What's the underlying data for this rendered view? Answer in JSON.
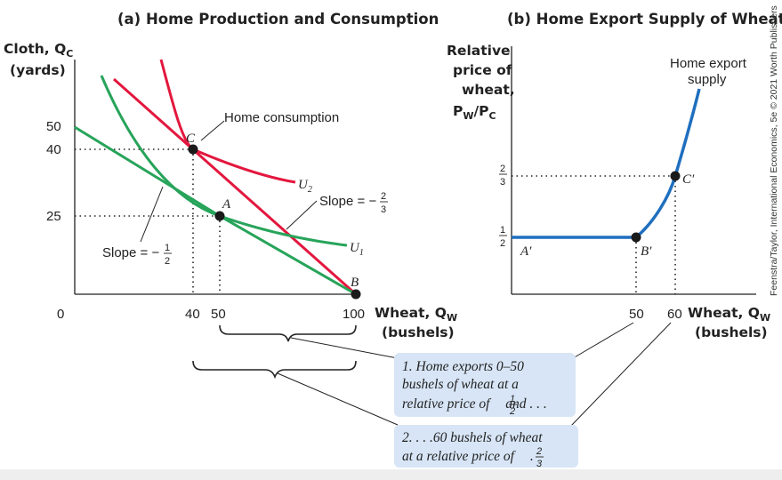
{
  "colors": {
    "green": "#27a45a",
    "red": "#e3173e",
    "blue": "#1f6fbf",
    "box": "#d7e5f6",
    "axis": "#222222"
  },
  "chart_data": [
    {
      "type": "line",
      "title": "(a) Home Production and Consumption",
      "ylabel_lines": [
        "Cloth, Q_C",
        "(yards)"
      ],
      "xlabel_lines": [
        "Wheat, Q_W",
        "(bushels)"
      ],
      "xlim": [
        0,
        100
      ],
      "ylim": [
        0,
        50
      ],
      "xticks": [
        "0",
        "40",
        "50",
        "100"
      ],
      "yticks": [
        "25",
        "40",
        "50"
      ],
      "series": [
        {
          "name": "",
          "role": "ppf",
          "x": [
            0,
            40,
            50,
            100
          ],
          "y": [
            50,
            40,
            25,
            0
          ]
        },
        {
          "name": "U2",
          "x": [
            40,
            45,
            52,
            60,
            70,
            80
          ],
          "y": [
            40,
            36.5,
            32.7,
            29.3,
            26.4,
            24.5
          ]
        },
        {
          "name": "U1",
          "x": [
            50,
            60,
            70,
            80,
            90,
            100
          ],
          "y": [
            25,
            19.8,
            16.6,
            14.6,
            13.3,
            12.6
          ]
        }
      ],
      "points": [
        {
          "label": "C",
          "x": 40,
          "y": 40
        },
        {
          "label": "A",
          "x": 50,
          "y": 25
        },
        {
          "label": "B",
          "x": 100,
          "y": 0
        }
      ],
      "annotations": [
        "Home consumption",
        "Slope = −2/3",
        "Slope = −1/2"
      ]
    },
    {
      "type": "line",
      "title": "(b) Home Export Supply of Wheat",
      "ylabel_lines": [
        "Relative",
        "price of",
        "wheat,",
        "P_W/P_C"
      ],
      "xlabel_lines": [
        "Wheat, Q_W",
        "(bushels)"
      ],
      "xticks": [
        "50",
        "60"
      ],
      "yticks": [
        "1/2",
        "2/3"
      ],
      "series": [
        {
          "name": "Home export supply",
          "x": [
            0,
            50,
            60,
            66
          ],
          "y": [
            0.5,
            0.5,
            0.667,
            1.25
          ]
        }
      ],
      "points": [
        {
          "label": "A′",
          "x": 0,
          "y": 0.5
        },
        {
          "label": "B′",
          "x": 50,
          "y": 0.5
        },
        {
          "label": "C′",
          "x": 60,
          "y": 0.667
        }
      ]
    }
  ],
  "text": {
    "title_a": "(a) Home Production and Consumption",
    "title_b": "(b) Home Export Supply of Wheat",
    "cloth_lbl": "Cloth, Q",
    "cloth_sub": "C",
    "yards": "(yards)",
    "wheat_lbl": "Wheat, Q",
    "wheat_sub": "W",
    "bushels": "(bushels)",
    "rel1": "Relative",
    "rel2": "price of",
    "rel3": "wheat,",
    "rel4a": "P",
    "rel4b": "W",
    "rel4c": "/P",
    "rel4d": "C",
    "y50": "50",
    "y40": "40",
    "y25": "25",
    "x0": "0",
    "x40": "40",
    "x50": "50",
    "x100": "100",
    "bx50": "50",
    "bx60": "60",
    "ptC": "C",
    "ptA": "A",
    "ptB": "B",
    "ptAp": "A′",
    "ptBp": "B′",
    "ptCp": "C′",
    "u2": "U",
    "u2sub": "2",
    "u1": "U",
    "u1sub": "1",
    "home_consumption": "Home consumption",
    "slope": "Slope = −",
    "frac1": "1",
    "frac2": "2",
    "frac23n": "2",
    "frac23d": "3",
    "one": "1",
    "two": "2",
    "three": "3",
    "supply1": "Home export",
    "supply2": "supply",
    "note1_l1": "1. Home exports 0–50",
    "note1_l2": "bushels of wheat at a",
    "note1_l3a": "relative price of ",
    "note1_l3b": " and . . .",
    "note2_l1": "2.  . . .60 bushels of wheat",
    "note2_l2a": "at a relative price of ",
    "note2_l2b": ".",
    "credit": "Feenstra/Taylor, International Economics, 5e © 2021 Worth Publishers"
  }
}
